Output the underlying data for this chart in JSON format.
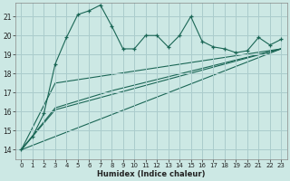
{
  "title": "",
  "xlabel": "Humidex (Indice chaleur)",
  "bg_color": "#cce8e4",
  "grid_color": "#aacccc",
  "line_color": "#1a6655",
  "xlim": [
    -0.5,
    23.5
  ],
  "ylim": [
    13.5,
    21.7
  ],
  "yticks": [
    14,
    15,
    16,
    17,
    18,
    19,
    20,
    21
  ],
  "xticks": [
    0,
    1,
    2,
    3,
    4,
    5,
    6,
    7,
    8,
    9,
    10,
    11,
    12,
    13,
    14,
    15,
    16,
    17,
    18,
    19,
    20,
    21,
    22,
    23
  ],
  "series1_x": [
    0,
    1,
    2,
    3,
    4,
    5,
    6,
    7,
    8,
    9,
    10,
    11,
    12,
    13,
    14,
    15,
    16,
    17,
    18,
    19,
    20,
    21,
    22,
    23
  ],
  "series1_y": [
    14.0,
    14.7,
    15.9,
    18.5,
    19.9,
    21.1,
    21.3,
    21.6,
    20.5,
    19.3,
    19.3,
    20.0,
    20.0,
    19.4,
    20.0,
    21.0,
    19.7,
    19.4,
    19.3,
    19.1,
    19.2,
    19.9,
    19.5,
    19.8
  ],
  "series2_x": [
    0,
    3,
    23
  ],
  "series2_y": [
    14.0,
    17.5,
    19.3
  ],
  "series3_x": [
    0,
    23
  ],
  "series3_y": [
    14.0,
    19.3
  ],
  "series4_x": [
    0,
    3,
    23
  ],
  "series4_y": [
    14.0,
    16.1,
    19.3
  ],
  "series5_x": [
    0,
    3,
    8,
    23
  ],
  "series5_y": [
    14.0,
    16.2,
    17.1,
    19.3
  ]
}
